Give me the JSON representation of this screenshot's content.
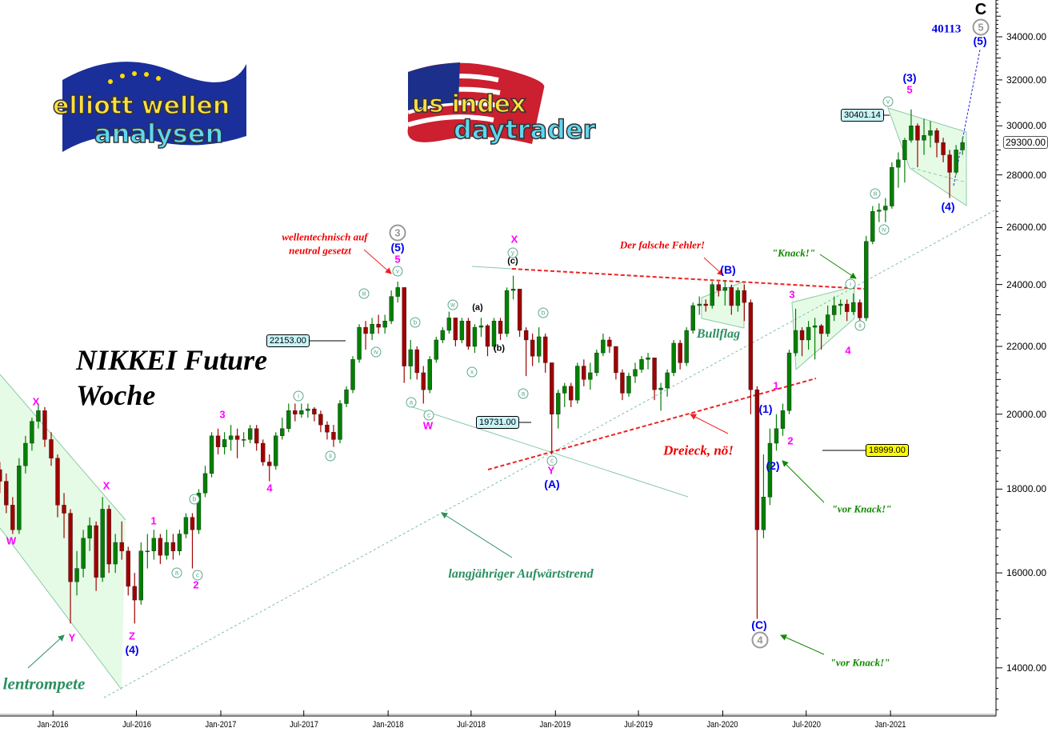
{
  "chart_data": {
    "type": "candlestick",
    "title": "NIKKEI Future",
    "subtitle": "Woche",
    "y_scale": "log",
    "ylim": [
      13000,
      36000
    ],
    "y_ticks": [
      34000,
      32000,
      30000,
      28000,
      26000,
      24000,
      22000,
      20000,
      18000,
      16000,
      14000
    ],
    "y_tick_labels": [
      "34000.00",
      "32000.00",
      "30000.00",
      "28000.00",
      "26000.00",
      "24000.00",
      "22000.00",
      "20000.00",
      "18000.00",
      "16000.00",
      "14000.00"
    ],
    "x_ticks": [
      "2016-01-01",
      "2016-07-01",
      "2017-01-01",
      "2017-07-01",
      "2018-01-01",
      "2018-07-01",
      "2019-01-01",
      "2019-07-01",
      "2020-01-01",
      "2020-07-01",
      "2021-01-01"
    ],
    "x_tick_labels": [
      "Jan-2016",
      "Jul-2016",
      "Jan-2017",
      "Jul-2017",
      "Jan-2018",
      "Jul-2018",
      "Jan-2019",
      "Jul-2019",
      "Jan-2020",
      "Jul-2020",
      "Jan-2021"
    ],
    "grid": false,
    "colors": {
      "up": "#008000",
      "down": "#a00000",
      "trend": "#7fbfa8",
      "red_line": "#ee2222",
      "channel_fill": "#e4fbe4"
    },
    "current_price": "29300.00",
    "candles_fields": [
      "date",
      "open",
      "high",
      "low",
      "close"
    ],
    "candles": [
      [
        "2015-09-07",
        18500,
        18700,
        17900,
        18200
      ],
      [
        "2015-09-21",
        18200,
        18400,
        17400,
        17600
      ],
      [
        "2015-10-05",
        17600,
        17800,
        16900,
        17000
      ],
      [
        "2015-10-19",
        17000,
        18800,
        16900,
        18600
      ],
      [
        "2015-11-02",
        18600,
        19400,
        18400,
        19200
      ],
      [
        "2015-11-16",
        19200,
        19900,
        19000,
        19800
      ],
      [
        "2015-11-30",
        19800,
        20300,
        19600,
        20100
      ],
      [
        "2015-12-14",
        20100,
        20200,
        19100,
        19300
      ],
      [
        "2015-12-28",
        19300,
        19500,
        18600,
        18800
      ],
      [
        "2016-01-11",
        18800,
        18900,
        17300,
        17600
      ],
      [
        "2016-01-25",
        17600,
        17900,
        16800,
        17400
      ],
      [
        "2016-02-08",
        17400,
        17500,
        14900,
        15800
      ],
      [
        "2016-02-22",
        15800,
        16500,
        15500,
        16100
      ],
      [
        "2016-03-07",
        16100,
        17000,
        15900,
        16800
      ],
      [
        "2016-03-21",
        16800,
        17300,
        16500,
        17100
      ],
      [
        "2016-04-04",
        17100,
        17200,
        15600,
        15900
      ],
      [
        "2016-04-18",
        15900,
        17800,
        15800,
        17500
      ],
      [
        "2016-05-02",
        17500,
        17600,
        16000,
        16200
      ],
      [
        "2016-05-16",
        16200,
        16900,
        16000,
        16700
      ],
      [
        "2016-05-30",
        16700,
        17200,
        16300,
        16500
      ],
      [
        "2016-06-13",
        16500,
        16600,
        15500,
        15700
      ],
      [
        "2016-06-27",
        15700,
        16000,
        14900,
        15400
      ],
      [
        "2016-07-11",
        15400,
        16700,
        15300,
        16500
      ],
      [
        "2016-07-25",
        16500,
        16900,
        16100,
        16500
      ],
      [
        "2016-08-08",
        16500,
        17000,
        16300,
        16800
      ],
      [
        "2016-08-22",
        16800,
        16900,
        16200,
        16400
      ],
      [
        "2016-09-05",
        16400,
        17000,
        16300,
        16700
      ],
      [
        "2016-09-19",
        16700,
        16900,
        16300,
        16500
      ],
      [
        "2016-10-03",
        16500,
        17000,
        16400,
        16900
      ],
      [
        "2016-10-17",
        16900,
        17400,
        16800,
        17300
      ],
      [
        "2016-10-31",
        17300,
        17400,
        16100,
        17000
      ],
      [
        "2016-11-14",
        17000,
        18000,
        16900,
        17900
      ],
      [
        "2016-11-28",
        17900,
        18600,
        17800,
        18400
      ],
      [
        "2016-12-12",
        18400,
        19500,
        18300,
        19400
      ],
      [
        "2016-12-26",
        19400,
        19600,
        18900,
        19100
      ],
      [
        "2017-01-09",
        19100,
        19500,
        18900,
        19300
      ],
      [
        "2017-01-23",
        19300,
        19700,
        19000,
        19400
      ],
      [
        "2017-02-06",
        19400,
        19600,
        18800,
        19300
      ],
      [
        "2017-02-20",
        19300,
        19500,
        19100,
        19300
      ],
      [
        "2017-03-06",
        19300,
        19700,
        19200,
        19600
      ],
      [
        "2017-03-20",
        19600,
        19700,
        19000,
        19200
      ],
      [
        "2017-04-03",
        19200,
        19300,
        18600,
        18700
      ],
      [
        "2017-04-17",
        18700,
        18900,
        18200,
        18600
      ],
      [
        "2017-05-01",
        18600,
        19500,
        18500,
        19400
      ],
      [
        "2017-05-15",
        19400,
        19900,
        19300,
        19600
      ],
      [
        "2017-05-29",
        19600,
        20300,
        19500,
        20100
      ],
      [
        "2017-06-12",
        20100,
        20300,
        19800,
        20000
      ],
      [
        "2017-06-26",
        20000,
        20300,
        19900,
        20100
      ],
      [
        "2017-07-10",
        20100,
        20300,
        19900,
        20150
      ],
      [
        "2017-07-24",
        20150,
        20200,
        19800,
        20000
      ],
      [
        "2017-08-07",
        20000,
        20100,
        19500,
        19700
      ],
      [
        "2017-08-21",
        19700,
        19800,
        19300,
        19500
      ],
      [
        "2017-09-04",
        19500,
        19700,
        19100,
        19300
      ],
      [
        "2017-09-18",
        19300,
        20400,
        19200,
        20300
      ],
      [
        "2017-10-02",
        20300,
        20800,
        20200,
        20700
      ],
      [
        "2017-10-16",
        20700,
        21700,
        20600,
        21600
      ],
      [
        "2017-10-30",
        21600,
        22700,
        21500,
        22600
      ],
      [
        "2017-11-13",
        22600,
        22800,
        21900,
        22400
      ],
      [
        "2017-11-27",
        22400,
        22900,
        22200,
        22700
      ],
      [
        "2017-12-11",
        22700,
        23000,
        22400,
        22600
      ],
      [
        "2017-12-25",
        22600,
        23000,
        22400,
        22800
      ],
      [
        "2018-01-08",
        22800,
        23800,
        22700,
        23600
      ],
      [
        "2018-01-22",
        23600,
        24100,
        23400,
        23900
      ],
      [
        "2018-02-05",
        23900,
        23900,
        20900,
        21400
      ],
      [
        "2018-02-19",
        21400,
        22200,
        21000,
        21900
      ],
      [
        "2018-03-05",
        21900,
        22000,
        21000,
        21200
      ],
      [
        "2018-03-19",
        21200,
        21400,
        20300,
        20700
      ],
      [
        "2018-04-02",
        20700,
        21700,
        20600,
        21600
      ],
      [
        "2018-04-16",
        21600,
        22300,
        21500,
        22200
      ],
      [
        "2018-04-30",
        22200,
        22600,
        22100,
        22500
      ],
      [
        "2018-05-14",
        22500,
        23100,
        22400,
        22900
      ],
      [
        "2018-05-28",
        22900,
        22900,
        22000,
        22200
      ],
      [
        "2018-06-11",
        22200,
        22900,
        22100,
        22800
      ],
      [
        "2018-06-25",
        22800,
        22900,
        21900,
        22000
      ],
      [
        "2018-07-09",
        22000,
        22700,
        21800,
        22600
      ],
      [
        "2018-07-23",
        22600,
        22900,
        22300,
        22650
      ],
      [
        "2018-08-06",
        22650,
        22700,
        21700,
        22000
      ],
      [
        "2018-08-20",
        22000,
        22900,
        21900,
        22800
      ],
      [
        "2018-09-03",
        22800,
        22900,
        22200,
        22400
      ],
      [
        "2018-09-17",
        22400,
        23900,
        22300,
        23800
      ],
      [
        "2018-10-01",
        23800,
        24300,
        23500,
        23850
      ],
      [
        "2018-10-15",
        23850,
        23850,
        22300,
        22500
      ],
      [
        "2018-10-29",
        22500,
        22600,
        21100,
        22200
      ],
      [
        "2018-11-12",
        22200,
        22400,
        21400,
        21700
      ],
      [
        "2018-11-26",
        21700,
        22600,
        21500,
        22300
      ],
      [
        "2018-12-10",
        22300,
        22400,
        21200,
        21500
      ],
      [
        "2018-12-24",
        21500,
        21500,
        18900,
        20000
      ],
      [
        "2019-01-07",
        20000,
        20700,
        19600,
        20600
      ],
      [
        "2019-01-21",
        20600,
        20900,
        20200,
        20800
      ],
      [
        "2019-02-04",
        20800,
        20900,
        20200,
        20400
      ],
      [
        "2019-02-18",
        20400,
        21500,
        20300,
        21400
      ],
      [
        "2019-03-04",
        21400,
        21600,
        20800,
        21000
      ],
      [
        "2019-03-18",
        21000,
        21500,
        20700,
        21200
      ],
      [
        "2019-04-01",
        21200,
        21900,
        21100,
        21800
      ],
      [
        "2019-04-15",
        21800,
        22400,
        21700,
        22200
      ],
      [
        "2019-04-29",
        22200,
        22300,
        21800,
        22000
      ],
      [
        "2019-05-13",
        22000,
        22000,
        21000,
        21200
      ],
      [
        "2019-05-27",
        21200,
        21300,
        20400,
        20600
      ],
      [
        "2019-06-10",
        20600,
        21200,
        20500,
        21100
      ],
      [
        "2019-06-24",
        21100,
        21500,
        20900,
        21300
      ],
      [
        "2019-07-08",
        21300,
        21700,
        21200,
        21600
      ],
      [
        "2019-07-22",
        21600,
        21800,
        21300,
        21650
      ],
      [
        "2019-08-05",
        21650,
        21650,
        20400,
        20700
      ],
      [
        "2019-08-19",
        20700,
        20900,
        20100,
        20750
      ],
      [
        "2019-09-02",
        20750,
        21300,
        20500,
        21200
      ],
      [
        "2019-09-16",
        21200,
        22200,
        21100,
        22100
      ],
      [
        "2019-09-30",
        22100,
        22200,
        21300,
        21500
      ],
      [
        "2019-10-14",
        21500,
        22600,
        21400,
        22500
      ],
      [
        "2019-10-28",
        22500,
        23400,
        22400,
        23300
      ],
      [
        "2019-11-11",
        23300,
        23600,
        23000,
        23350
      ],
      [
        "2019-11-25",
        23350,
        23500,
        23100,
        23300
      ],
      [
        "2019-12-09",
        23300,
        24100,
        23200,
        24000
      ],
      [
        "2019-12-23",
        24000,
        24100,
        23600,
        23800
      ],
      [
        "2020-01-06",
        23800,
        24150,
        23300,
        23900
      ],
      [
        "2020-01-20",
        23900,
        24000,
        23000,
        23300
      ],
      [
        "2020-02-03",
        23300,
        23900,
        23100,
        23800
      ],
      [
        "2020-02-17",
        23800,
        24000,
        22800,
        23400
      ],
      [
        "2020-03-02",
        23400,
        23500,
        20000,
        20700
      ],
      [
        "2020-03-16",
        20700,
        20800,
        15000,
        17000
      ],
      [
        "2020-03-30",
        17000,
        18900,
        16800,
        17800
      ],
      [
        "2020-04-13",
        17800,
        19600,
        17600,
        19200
      ],
      [
        "2020-04-27",
        19200,
        20000,
        19000,
        19600
      ],
      [
        "2020-05-11",
        19600,
        20300,
        19400,
        20100
      ],
      [
        "2020-05-25",
        20100,
        21900,
        20000,
        21800
      ],
      [
        "2020-06-08",
        21800,
        23200,
        21700,
        22500
      ],
      [
        "2020-06-22",
        22500,
        22600,
        21700,
        22200
      ],
      [
        "2020-07-06",
        22200,
        22800,
        21900,
        22600
      ],
      [
        "2020-07-20",
        22600,
        22900,
        21600,
        22650
      ],
      [
        "2020-08-03",
        22650,
        22700,
        21900,
        22400
      ],
      [
        "2020-08-17",
        22400,
        23300,
        22300,
        23000
      ],
      [
        "2020-08-31",
        23000,
        23600,
        22800,
        23300
      ],
      [
        "2020-09-14",
        23300,
        23500,
        23000,
        23350
      ],
      [
        "2020-09-28",
        23350,
        23500,
        22800,
        23100
      ],
      [
        "2020-10-12",
        23100,
        23700,
        23000,
        23400
      ],
      [
        "2020-10-26",
        23400,
        23500,
        22600,
        22900
      ],
      [
        "2020-11-09",
        22900,
        25700,
        22800,
        25500
      ],
      [
        "2020-11-23",
        25500,
        26800,
        25400,
        26600
      ],
      [
        "2020-12-07",
        26600,
        26900,
        26200,
        26650
      ],
      [
        "2020-12-21",
        26650,
        27100,
        26200,
        26800
      ],
      [
        "2021-01-04",
        26800,
        28500,
        26700,
        28300
      ],
      [
        "2021-01-18",
        28300,
        28900,
        27500,
        28600
      ],
      [
        "2021-02-01",
        28600,
        29500,
        27700,
        29400
      ],
      [
        "2021-02-15",
        29400,
        30700,
        29300,
        30000
      ],
      [
        "2021-03-01",
        30000,
        30100,
        28300,
        29400
      ],
      [
        "2021-03-15",
        29400,
        30300,
        28800,
        29600
      ],
      [
        "2021-03-29",
        29600,
        30200,
        29100,
        29800
      ],
      [
        "2021-04-12",
        29800,
        29900,
        28700,
        29300
      ],
      [
        "2021-04-26",
        29300,
        29500,
        28500,
        28800
      ],
      [
        "2021-05-10",
        28800,
        29000,
        27100,
        28100
      ],
      [
        "2021-05-24",
        28100,
        29200,
        28000,
        29000
      ],
      [
        "2021-06-07",
        29000,
        29500,
        28800,
        29300
      ]
    ]
  },
  "logos": {
    "left": {
      "line1": "elliott wellen",
      "line2": "analysen"
    },
    "right": {
      "line1": "us index",
      "line2": "daytrader"
    }
  },
  "title": {
    "line1": "NIKKEI Future",
    "line2": "Woche"
  },
  "waves": {
    "pink": [
      "X",
      "W",
      "X",
      "Y",
      "Z",
      "1",
      "2",
      "3",
      "4",
      "5",
      "X",
      "W",
      "Y",
      "3",
      "4",
      "1",
      "2",
      "5"
    ],
    "blue": [
      "(4)",
      "(5)",
      "(A)",
      "(B)",
      "(C)",
      "(1)",
      "(2)",
      "(3)",
      "(4)",
      "(5)"
    ],
    "gray": [
      "3",
      "4",
      "5"
    ],
    "top": "C",
    "target": "40113",
    "minor": [
      "a",
      "c",
      "b",
      "i",
      "ii",
      "iii",
      "iv",
      "v",
      "b",
      "a",
      "c",
      "w",
      "x",
      "y",
      "a",
      "b",
      "c",
      "v",
      "iii",
      "iv",
      "i",
      "ii"
    ],
    "sub": [
      "(a)",
      "(b)",
      "(c)"
    ]
  },
  "notes": {
    "neutral": [
      "wellentechnisch auf",
      "neutral gesetzt"
    ],
    "fehler": "Der falsche Fehler!",
    "dreieck": "Dreieck, nö!",
    "knack": "\"Knack!\"",
    "bullflag": "Bullflag",
    "vor_knack_1": "\"vor Knack!\"",
    "vor_knack_2": "\"vor Knack!\"",
    "trend": "langjähriger Aufwärtstrend",
    "trompete": "lentrompete"
  },
  "price_boxes": {
    "high_2021": "30401.14",
    "p22153": "22153.00",
    "p19731": "19731.00",
    "p18999": "18999.00"
  }
}
